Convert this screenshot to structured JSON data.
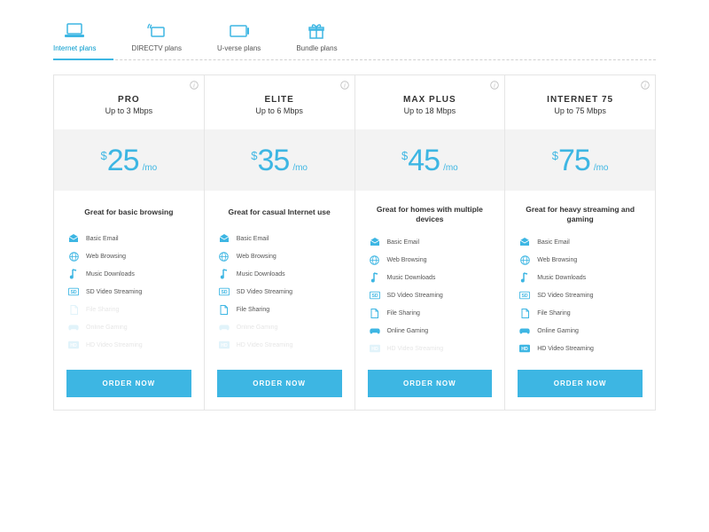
{
  "colors": {
    "accent": "#3db6e3",
    "text": "#333333",
    "muted": "#555555",
    "border": "#e5e5e5",
    "priceBg": "#f3f3f3"
  },
  "tabs": [
    {
      "label": "Internet plans",
      "icon": "laptop",
      "active": true
    },
    {
      "label": "DIRECTV plans",
      "icon": "satellite",
      "active": false
    },
    {
      "label": "U-verse plans",
      "icon": "remote",
      "active": false
    },
    {
      "label": "Bundle plans",
      "icon": "gift",
      "active": false
    }
  ],
  "featureSet": [
    {
      "key": "email",
      "label": "Basic Email",
      "icon": "email"
    },
    {
      "key": "web",
      "label": "Web Browsing",
      "icon": "globe"
    },
    {
      "key": "music",
      "label": "Music Downloads",
      "icon": "music"
    },
    {
      "key": "sd",
      "label": "SD Video Streaming",
      "icon": "sd"
    },
    {
      "key": "file",
      "label": "File Sharing",
      "icon": "file"
    },
    {
      "key": "game",
      "label": "Online Gaming",
      "icon": "gamepad"
    },
    {
      "key": "hd",
      "label": "HD Video Streaming",
      "icon": "hd"
    }
  ],
  "plans": [
    {
      "name": "PRO",
      "speed": "Up to 3 Mbps",
      "currency": "$",
      "price": "25",
      "period": "/mo",
      "desc": "Great for basic browsing",
      "enabled": [
        "email",
        "web",
        "music",
        "sd"
      ],
      "cta": "ORDER NOW"
    },
    {
      "name": "ELITE",
      "speed": "Up to 6 Mbps",
      "currency": "$",
      "price": "35",
      "period": "/mo",
      "desc": "Great for casual Internet use",
      "enabled": [
        "email",
        "web",
        "music",
        "sd",
        "file"
      ],
      "cta": "ORDER NOW"
    },
    {
      "name": "MAX PLUS",
      "speed": "Up to 18 Mbps",
      "currency": "$",
      "price": "45",
      "period": "/mo",
      "desc": "Great for homes with multiple devices",
      "enabled": [
        "email",
        "web",
        "music",
        "sd",
        "file",
        "game"
      ],
      "cta": "ORDER NOW"
    },
    {
      "name": "INTERNET 75",
      "speed": "Up to 75 Mbps",
      "currency": "$",
      "price": "75",
      "period": "/mo",
      "desc": "Great for heavy streaming and gaming",
      "enabled": [
        "email",
        "web",
        "music",
        "sd",
        "file",
        "game",
        "hd"
      ],
      "cta": "ORDER NOW"
    }
  ]
}
